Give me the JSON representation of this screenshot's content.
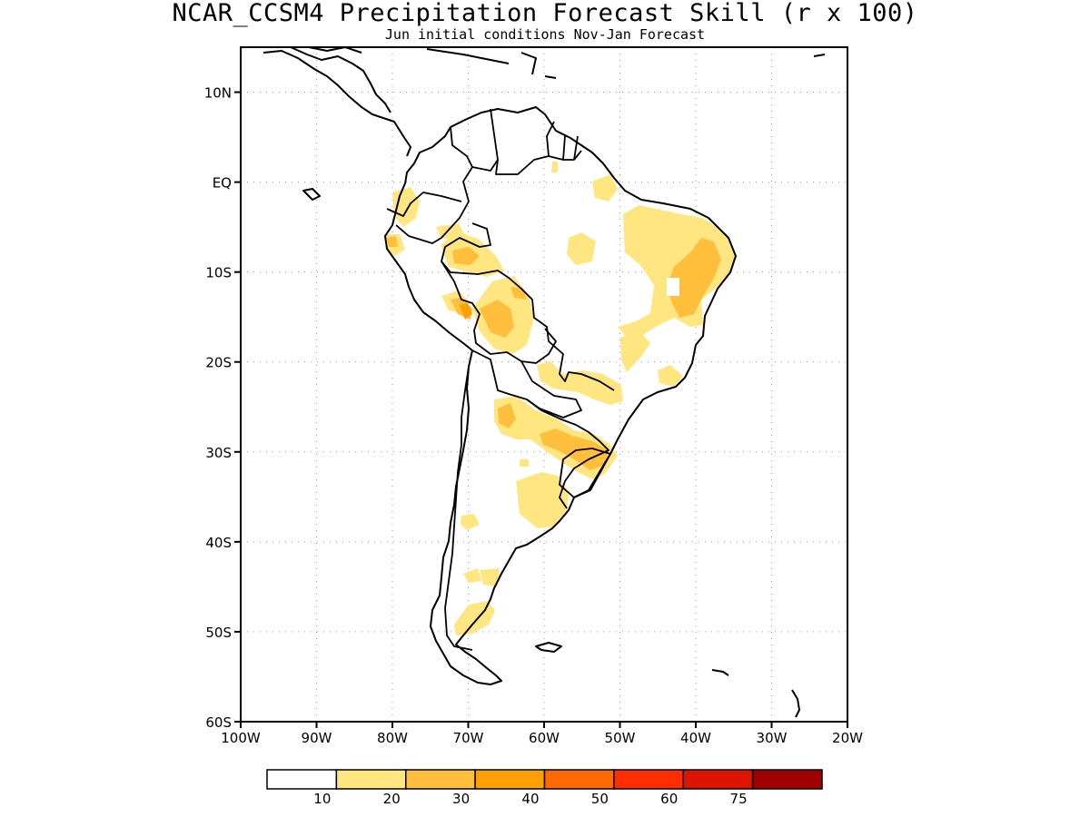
{
  "title": "NCAR_CCSM4 Precipitation Forecast Skill (r x 100)",
  "subtitle": "Jun initial conditions  Nov-Jan Forecast",
  "map": {
    "projection": "lat-lon",
    "lon_range": [
      -100,
      -20
    ],
    "lat_range": [
      -60,
      15
    ],
    "grid": "dotted",
    "lat_labels": [
      {
        "lat": 10,
        "label": "10N"
      },
      {
        "lat": 0,
        "label": "EQ"
      },
      {
        "lat": -10,
        "label": "10S"
      },
      {
        "lat": -20,
        "label": "20S"
      },
      {
        "lat": -30,
        "label": "30S"
      },
      {
        "lat": -40,
        "label": "40S"
      },
      {
        "lat": -50,
        "label": "50S"
      },
      {
        "lat": -60,
        "label": "60S"
      }
    ],
    "lon_labels": [
      {
        "lon": -100,
        "label": "100W"
      },
      {
        "lon": -90,
        "label": "90W"
      },
      {
        "lon": -80,
        "label": "80W"
      },
      {
        "lon": -70,
        "label": "70W"
      },
      {
        "lon": -60,
        "label": "60W"
      },
      {
        "lon": -50,
        "label": "50W"
      },
      {
        "lon": -40,
        "label": "40W"
      },
      {
        "lon": -30,
        "label": "30W"
      },
      {
        "lon": -20,
        "label": "20W"
      }
    ]
  },
  "colorbar": {
    "colors": [
      "#ffffff",
      "#ffe680",
      "#ffbe3c",
      "#ffa000",
      "#ff6a00",
      "#ff2d00",
      "#dc1400",
      "#a00000"
    ],
    "labels": [
      "10",
      "20",
      "30",
      "40",
      "50",
      "60",
      "75"
    ]
  }
}
